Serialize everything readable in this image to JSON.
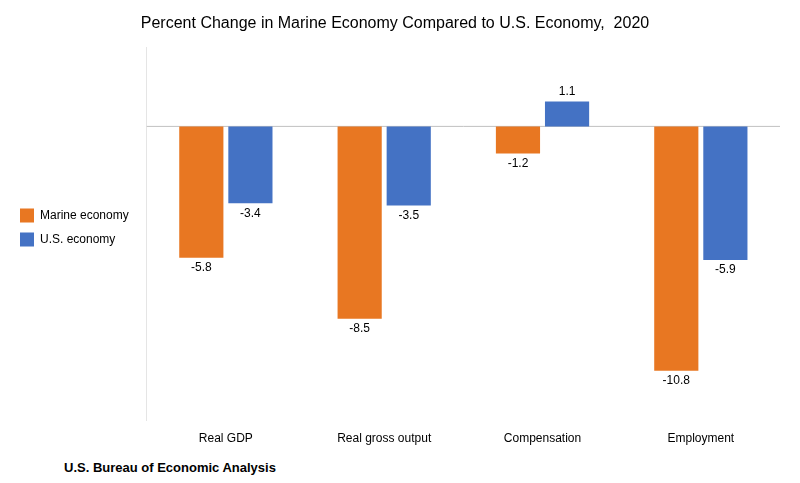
{
  "chart_data": {
    "type": "bar",
    "title": "Percent Change in Marine Economy Compared to U.S. Economy,  2020",
    "annotations": [
      "U.S. Bureau of Economic Analysis"
    ],
    "categories": [
      "Real GDP",
      "Real gross output",
      "Compensation",
      "Employment"
    ],
    "series": [
      {
        "name": "Marine economy",
        "color": "#E87722",
        "values": [
          -5.8,
          -8.5,
          -1.2,
          -10.8
        ]
      },
      {
        "name": "U.S. economy",
        "color": "#4472C4",
        "values": [
          -3.4,
          -3.5,
          1.1,
          -5.9
        ]
      }
    ],
    "ylim": [
      -13,
      3.5
    ],
    "grid": false,
    "legend": "left",
    "data_labels": true,
    "tick_labels": "x"
  }
}
